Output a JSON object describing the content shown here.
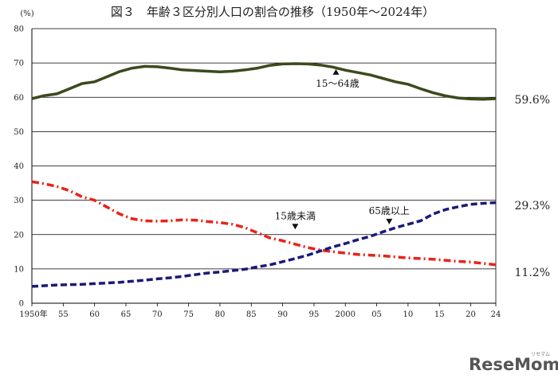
{
  "chart_data": {
    "type": "line",
    "title": "図３　年齢３区分別人口の割合の推移（1950年～2024年）",
    "ylabel": "(%)",
    "ylim": [
      0,
      80
    ],
    "y_ticks": [
      "0",
      "10",
      "20",
      "30",
      "40",
      "50",
      "60",
      "70",
      "80"
    ],
    "xlim": [
      1950,
      2024
    ],
    "x_ticks": [
      {
        "x": 1950,
        "label": "1950年"
      },
      {
        "x": 1955,
        "label": "55"
      },
      {
        "x": 1960,
        "label": "60"
      },
      {
        "x": 1965,
        "label": "65"
      },
      {
        "x": 1970,
        "label": "70"
      },
      {
        "x": 1975,
        "label": "75"
      },
      {
        "x": 1980,
        "label": "80"
      },
      {
        "x": 1985,
        "label": "85"
      },
      {
        "x": 1990,
        "label": "90"
      },
      {
        "x": 1995,
        "label": "95"
      },
      {
        "x": 2000,
        "label": "2000"
      },
      {
        "x": 2005,
        "label": "05"
      },
      {
        "x": 2010,
        "label": "10"
      },
      {
        "x": 2015,
        "label": "15"
      },
      {
        "x": 2020,
        "label": "20"
      },
      {
        "x": 2024,
        "label": "24"
      }
    ],
    "grid": "horizontal",
    "series": [
      {
        "name": "15～64歳",
        "color": "#3b4a1c",
        "style": "solid",
        "end_label": "59.6%",
        "annotation": {
          "label": "15～64歳",
          "x": 1998.5,
          "y": 68.2,
          "arrow": "up"
        },
        "x": [
          1950,
          1952,
          1954,
          1956,
          1958,
          1960,
          1962,
          1964,
          1966,
          1968,
          1970,
          1972,
          1974,
          1976,
          1978,
          1980,
          1982,
          1984,
          1986,
          1988,
          1990,
          1992,
          1994,
          1996,
          1998,
          2000,
          2002,
          2004,
          2006,
          2008,
          2010,
          2012,
          2014,
          2016,
          2018,
          2020,
          2022,
          2024
        ],
        "y": [
          59.6,
          60.5,
          61.0,
          62.5,
          64.0,
          64.5,
          66.0,
          67.5,
          68.5,
          69.0,
          68.9,
          68.5,
          68.0,
          67.8,
          67.6,
          67.4,
          67.6,
          68.0,
          68.5,
          69.3,
          69.7,
          69.8,
          69.7,
          69.4,
          68.8,
          67.9,
          67.2,
          66.5,
          65.5,
          64.5,
          63.8,
          62.5,
          61.3,
          60.4,
          59.8,
          59.5,
          59.4,
          59.6
        ]
      },
      {
        "name": "15歳未満",
        "color": "#e8231a",
        "style": "dashdot",
        "end_label": "11.2%",
        "annotation": {
          "label": "15歳未満",
          "x": 1992,
          "y": 21.5,
          "arrow": "down"
        },
        "x": [
          1950,
          1952,
          1954,
          1956,
          1958,
          1960,
          1962,
          1964,
          1966,
          1968,
          1970,
          1972,
          1974,
          1976,
          1978,
          1980,
          1982,
          1984,
          1986,
          1988,
          1990,
          1992,
          1994,
          1996,
          1998,
          2000,
          2002,
          2004,
          2006,
          2008,
          2010,
          2012,
          2014,
          2016,
          2018,
          2020,
          2022,
          2024
        ],
        "y": [
          35.4,
          34.8,
          34.0,
          32.8,
          31.0,
          30.0,
          28.0,
          26.0,
          24.6,
          24.0,
          23.9,
          24.0,
          24.3,
          24.2,
          23.8,
          23.5,
          23.0,
          22.0,
          20.5,
          19.0,
          18.2,
          17.2,
          16.2,
          15.5,
          15.0,
          14.6,
          14.2,
          14.0,
          13.8,
          13.5,
          13.2,
          13.0,
          12.8,
          12.5,
          12.2,
          12.0,
          11.6,
          11.2
        ]
      },
      {
        "name": "65歳以上",
        "color": "#1a1a7a",
        "style": "dashed",
        "end_label": "29.3%",
        "annotation": {
          "label": "65歳以上",
          "x": 2007,
          "y": 23.0,
          "arrow": "down"
        },
        "x": [
          1950,
          1952,
          1954,
          1956,
          1958,
          1960,
          1962,
          1964,
          1966,
          1968,
          1970,
          1972,
          1974,
          1976,
          1978,
          1980,
          1982,
          1984,
          1986,
          1988,
          1990,
          1992,
          1994,
          1996,
          1998,
          2000,
          2002,
          2004,
          2006,
          2008,
          2010,
          2012,
          2014,
          2016,
          2018,
          2020,
          2022,
          2024
        ],
        "y": [
          4.9,
          5.1,
          5.3,
          5.4,
          5.5,
          5.7,
          5.9,
          6.1,
          6.4,
          6.7,
          7.1,
          7.4,
          7.8,
          8.3,
          8.8,
          9.1,
          9.5,
          9.9,
          10.6,
          11.2,
          12.1,
          13.0,
          14.0,
          15.2,
          16.4,
          17.4,
          18.5,
          19.5,
          20.8,
          22.0,
          23.0,
          24.0,
          26.0,
          27.3,
          28.1,
          28.8,
          29.1,
          29.3
        ]
      }
    ]
  },
  "watermark": {
    "brand": "ReseMom",
    "ruby": "リセマム"
  }
}
